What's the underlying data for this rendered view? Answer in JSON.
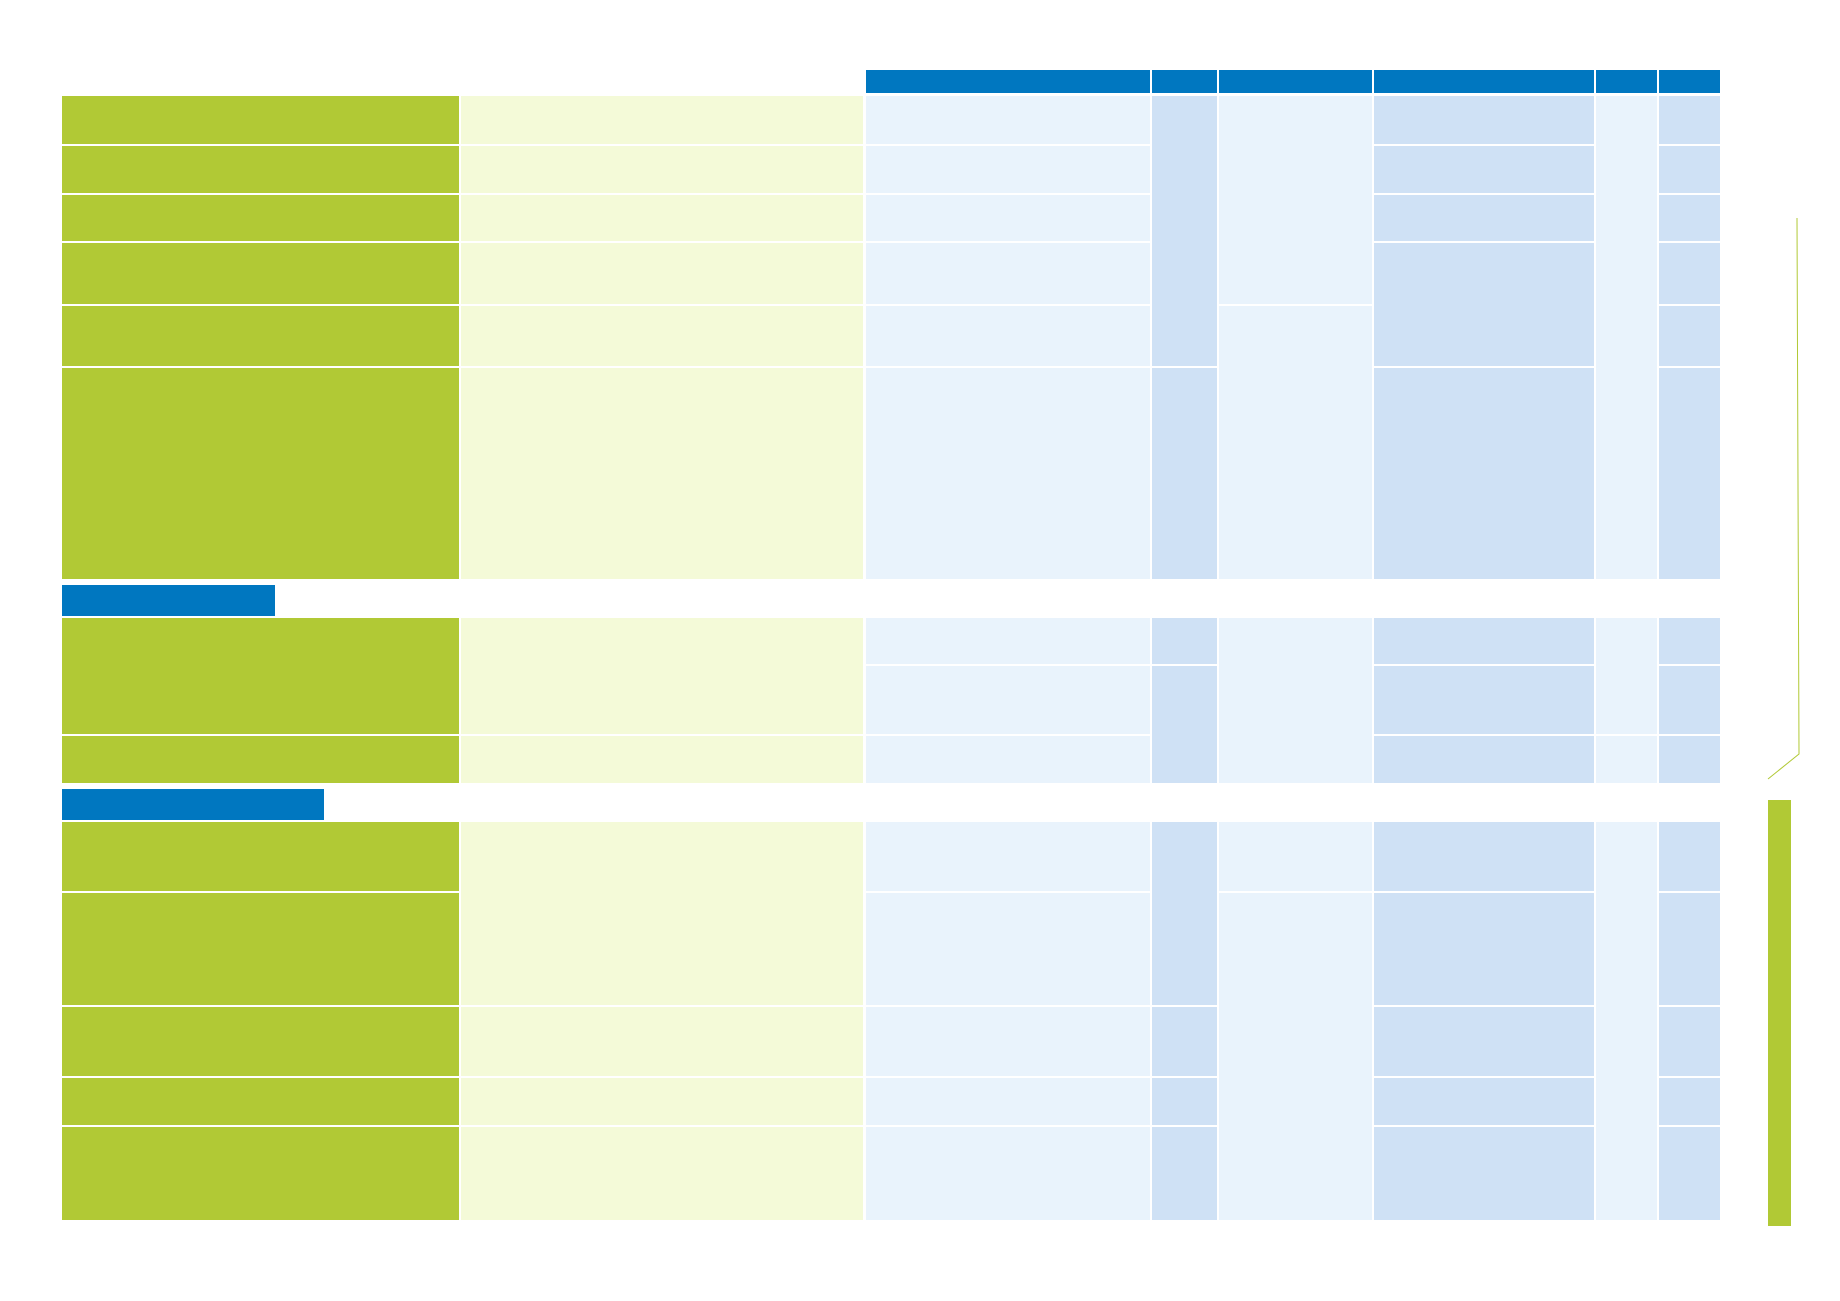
{
  "colors": {
    "header_blue": "#0077c0",
    "green_strong": "#b1c935",
    "green_light": "#f4fad8",
    "blue_light": "#e9f3fc",
    "blue_mid": "#cfe1f5",
    "background": "#ffffff"
  },
  "table": {
    "header_cells": 6,
    "sections": [
      {
        "rows": 6
      },
      {
        "rows": 3
      },
      {
        "rows": 5
      }
    ]
  }
}
